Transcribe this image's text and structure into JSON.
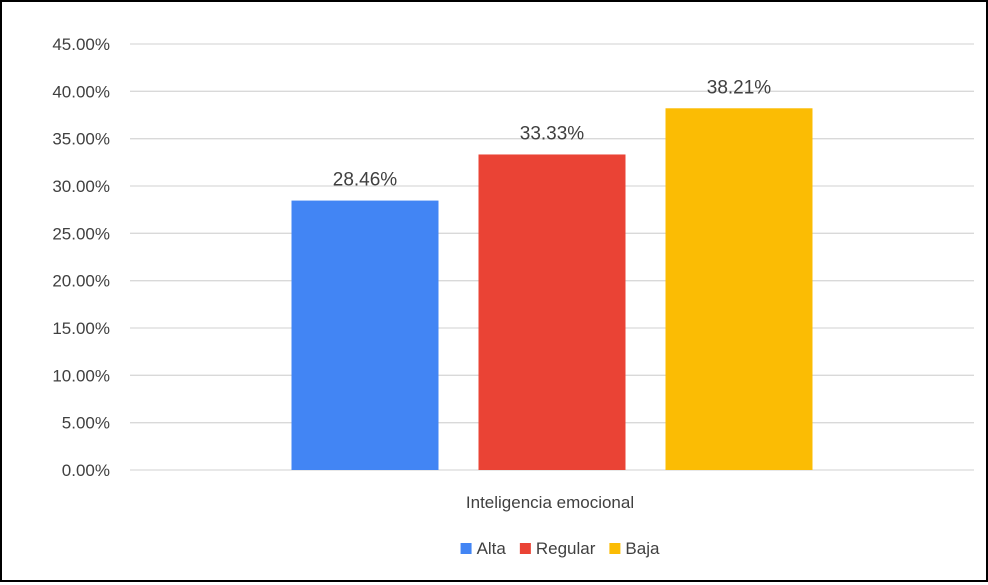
{
  "chart_data": {
    "type": "bar",
    "categories": [
      "Inteligencia emocional"
    ],
    "series": [
      {
        "name": "Alta",
        "values": [
          28.46
        ],
        "label": "28.46%",
        "color": "#4285F4"
      },
      {
        "name": "Regular",
        "values": [
          33.33
        ],
        "label": "33.33%",
        "color": "#EA4335"
      },
      {
        "name": "Baja",
        "values": [
          38.21
        ],
        "label": "38.21%",
        "color": "#FBBC04"
      }
    ],
    "ylim": [
      0,
      45
    ],
    "y_ticks": [
      0,
      5,
      10,
      15,
      20,
      25,
      30,
      35,
      40,
      45
    ],
    "y_tick_labels": [
      "0.00%",
      "5.00%",
      "10.00%",
      "15.00%",
      "20.00%",
      "25.00%",
      "30.00%",
      "35.00%",
      "40.00%",
      "45.00%"
    ],
    "grid": true,
    "legend": "bottom",
    "title": "",
    "xlabel": "",
    "ylabel": ""
  },
  "colors": {
    "gridline": "#d9d9d9",
    "text": "#404040",
    "frame": "#000000"
  }
}
